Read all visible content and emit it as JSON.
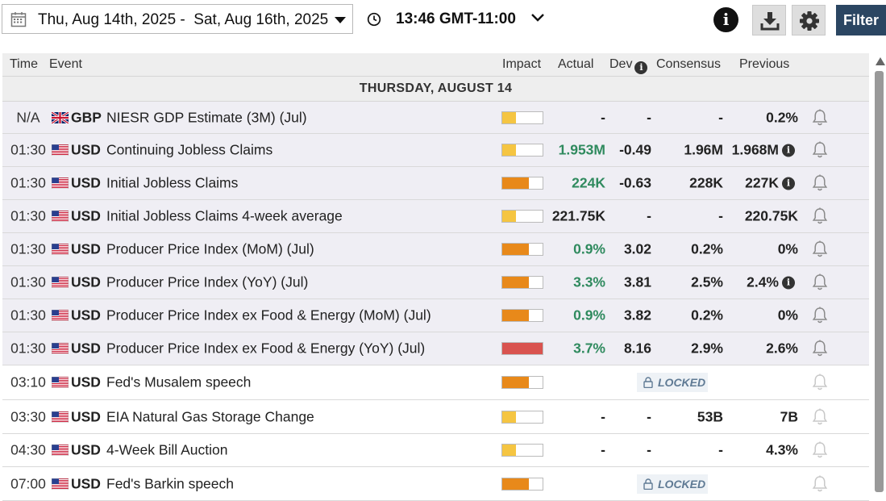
{
  "toolbar": {
    "date_range": "Thu, Aug 14th, 2025 -  Sat, Aug 16th, 2025",
    "time": "13:46 GMT-11:00",
    "filter_label": "Filter",
    "info_label": "i"
  },
  "columns": {
    "time": "Time",
    "event": "Event",
    "impact": "Impact",
    "actual": "Actual",
    "dev": "Dev",
    "consensus": "Consensus",
    "previous": "Previous"
  },
  "day_header": "THURSDAY, AUGUST 14",
  "colors": {
    "impact_low": "#f5c542",
    "impact_medium": "#e8891a",
    "impact_high": "#d9534f",
    "positive": "#2f8a5e",
    "filter_bg": "#2b4662"
  },
  "rows": [
    {
      "time": "N/A",
      "flag": "gb-flag-icon",
      "currency": "GBP",
      "event": "NIESR GDP Estimate (3M) (Jul)",
      "impact": 0.33,
      "impact_level": "low",
      "actual": "-",
      "dev": "-",
      "consensus": "-",
      "previous": "0.2%",
      "actual_green": false,
      "prev_info": false,
      "locked": false,
      "past": true
    },
    {
      "time": "01:30",
      "flag": "us-flag-icon",
      "currency": "USD",
      "event": "Continuing Jobless Claims",
      "impact": 0.33,
      "impact_level": "low",
      "actual": "1.953M",
      "dev": "-0.49",
      "consensus": "1.96M",
      "previous": "1.968M",
      "actual_green": true,
      "prev_info": true,
      "locked": false,
      "past": true
    },
    {
      "time": "01:30",
      "flag": "us-flag-icon",
      "currency": "USD",
      "event": "Initial Jobless Claims",
      "impact": 0.66,
      "impact_level": "medium",
      "actual": "224K",
      "dev": "-0.63",
      "consensus": "228K",
      "previous": "227K",
      "actual_green": true,
      "prev_info": true,
      "locked": false,
      "past": true
    },
    {
      "time": "01:30",
      "flag": "us-flag-icon",
      "currency": "USD",
      "event": "Initial Jobless Claims 4-week average",
      "impact": 0.33,
      "impact_level": "low",
      "actual": "221.75K",
      "dev": "-",
      "consensus": "-",
      "previous": "220.75K",
      "actual_green": false,
      "prev_info": false,
      "locked": false,
      "past": true
    },
    {
      "time": "01:30",
      "flag": "us-flag-icon",
      "currency": "USD",
      "event": "Producer Price Index (MoM) (Jul)",
      "impact": 0.66,
      "impact_level": "medium",
      "actual": "0.9%",
      "dev": "3.02",
      "consensus": "0.2%",
      "previous": "0%",
      "actual_green": true,
      "prev_info": false,
      "locked": false,
      "past": true
    },
    {
      "time": "01:30",
      "flag": "us-flag-icon",
      "currency": "USD",
      "event": "Producer Price Index (YoY) (Jul)",
      "impact": 0.66,
      "impact_level": "medium",
      "actual": "3.3%",
      "dev": "3.81",
      "consensus": "2.5%",
      "previous": "2.4%",
      "actual_green": true,
      "prev_info": true,
      "locked": false,
      "past": true
    },
    {
      "time": "01:30",
      "flag": "us-flag-icon",
      "currency": "USD",
      "event": "Producer Price Index ex Food & Energy (MoM) (Jul)",
      "impact": 0.66,
      "impact_level": "medium",
      "actual": "0.9%",
      "dev": "3.82",
      "consensus": "0.2%",
      "previous": "0%",
      "actual_green": true,
      "prev_info": false,
      "locked": false,
      "past": true
    },
    {
      "time": "01:30",
      "flag": "us-flag-icon",
      "currency": "USD",
      "event": "Producer Price Index ex Food & Energy (YoY) (Jul)",
      "impact": 1.0,
      "impact_level": "high",
      "actual": "3.7%",
      "dev": "8.16",
      "consensus": "2.9%",
      "previous": "2.6%",
      "actual_green": true,
      "prev_info": false,
      "locked": false,
      "past": true
    },
    {
      "time": "03:10",
      "flag": "us-flag-icon",
      "currency": "USD",
      "event": "Fed's Musalem speech",
      "impact": 0.66,
      "impact_level": "medium",
      "actual": "",
      "dev": "",
      "consensus": "",
      "previous": "",
      "actual_green": false,
      "prev_info": false,
      "locked": true,
      "locked_label": "LOCKED",
      "past": false
    },
    {
      "time": "03:30",
      "flag": "us-flag-icon",
      "currency": "USD",
      "event": "EIA Natural Gas Storage Change",
      "impact": 0.33,
      "impact_level": "low",
      "actual": "-",
      "dev": "-",
      "consensus": "53B",
      "previous": "7B",
      "actual_green": false,
      "prev_info": false,
      "locked": false,
      "past": false
    },
    {
      "time": "04:30",
      "flag": "us-flag-icon",
      "currency": "USD",
      "event": "4-Week Bill Auction",
      "impact": 0.33,
      "impact_level": "low",
      "actual": "-",
      "dev": "-",
      "consensus": "-",
      "previous": "4.3%",
      "actual_green": false,
      "prev_info": false,
      "locked": false,
      "past": false
    },
    {
      "time": "07:00",
      "flag": "us-flag-icon",
      "currency": "USD",
      "event": "Fed's Barkin speech",
      "impact": 0.66,
      "impact_level": "medium",
      "actual": "",
      "dev": "",
      "consensus": "",
      "previous": "",
      "actual_green": false,
      "prev_info": false,
      "locked": true,
      "locked_label": "LOCKED",
      "past": false
    }
  ]
}
